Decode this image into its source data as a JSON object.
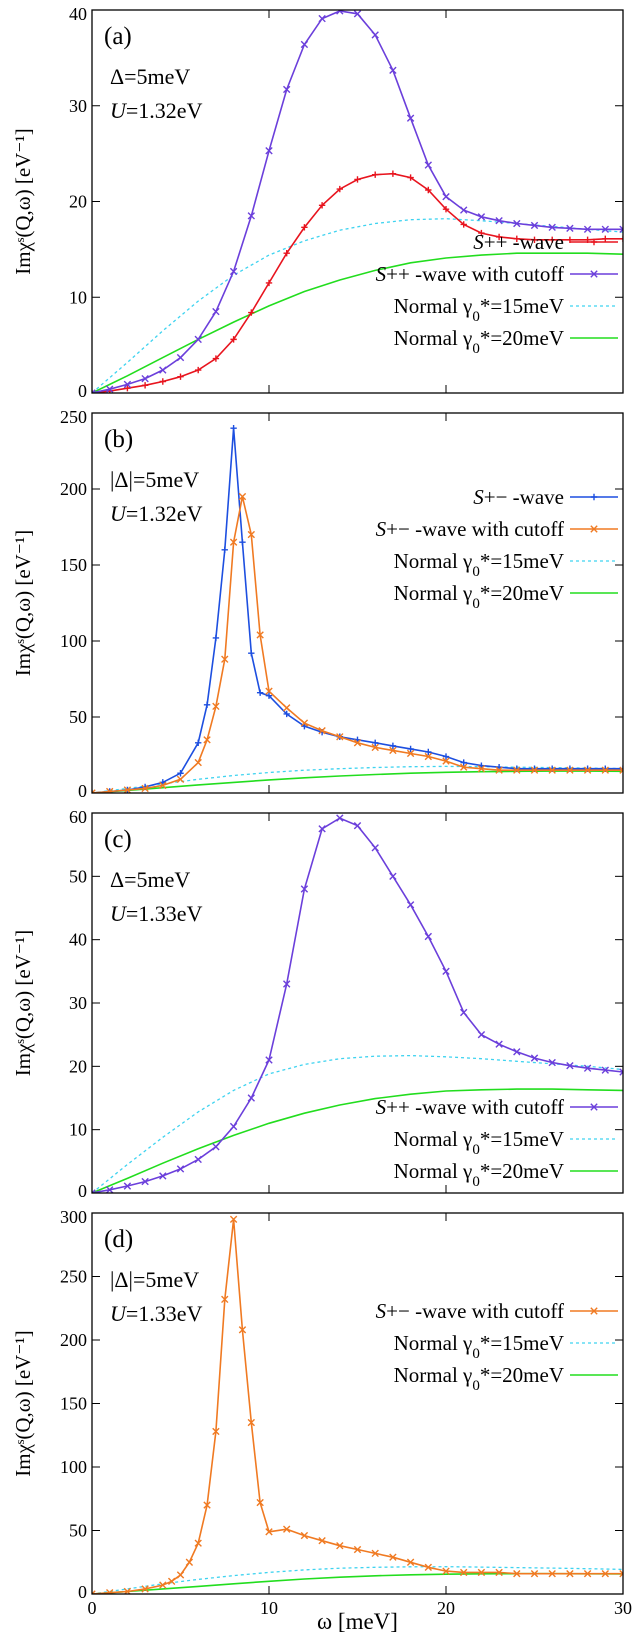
{
  "figure": {
    "x_axis_label": "ω [meV]",
    "y_axis_label": "Imχˢ(Q,ω) [eV⁻¹]"
  },
  "chart_data": [
    {
      "type": "line",
      "panel": "(a)",
      "params": [
        "Δ=5meV",
        "U=1.32eV"
      ],
      "xlim": [
        0,
        30
      ],
      "ylim": [
        0,
        40
      ],
      "xticks": [],
      "yticks": [
        0,
        10,
        20,
        30,
        40
      ],
      "legend_position": "bottom-right",
      "grid": false,
      "series": [
        {
          "name": "S++ -wave",
          "color": "#e8141e",
          "marker": "plus",
          "dash": "solid",
          "x": [
            0,
            1,
            2,
            3,
            4,
            5,
            6,
            7,
            8,
            9,
            10,
            11,
            12,
            13,
            14,
            15,
            16,
            17,
            18,
            19,
            20,
            21,
            22,
            23,
            24,
            25,
            26,
            27,
            28,
            29,
            30
          ],
          "y": [
            0,
            0.2,
            0.5,
            0.8,
            1.2,
            1.7,
            2.4,
            3.6,
            5.6,
            8.4,
            11.5,
            14.6,
            17.3,
            19.6,
            21.3,
            22.3,
            22.8,
            22.9,
            22.5,
            21.2,
            19.2,
            17.6,
            16.7,
            16.3,
            16.1,
            16.0,
            16.0,
            16.0,
            16.0,
            16.1,
            16.1
          ]
        },
        {
          "name": "S++ -wave with cutoff",
          "color": "#6b3fdb",
          "marker": "cross",
          "dash": "solid",
          "x": [
            0,
            1,
            2,
            3,
            4,
            5,
            6,
            7,
            8,
            9,
            10,
            11,
            12,
            13,
            14,
            15,
            16,
            17,
            18,
            19,
            20,
            21,
            22,
            23,
            24,
            25,
            26,
            27,
            28,
            29,
            30
          ],
          "y": [
            0,
            0.4,
            0.9,
            1.5,
            2.4,
            3.7,
            5.6,
            8.5,
            12.7,
            18.5,
            25.3,
            31.7,
            36.4,
            39.1,
            39.9,
            39.6,
            37.4,
            33.7,
            28.7,
            23.8,
            20.5,
            19.1,
            18.4,
            18.0,
            17.7,
            17.5,
            17.3,
            17.2,
            17.1,
            17.1,
            17.1
          ]
        },
        {
          "name": "Normal γ₀*=15meV",
          "color": "#3ed3f0",
          "marker": "none",
          "dash": "dashed",
          "x": [
            0,
            2,
            4,
            6,
            8,
            10,
            12,
            14,
            16,
            18,
            20,
            22,
            24,
            26,
            28,
            30
          ],
          "y": [
            0,
            3.2,
            6.5,
            9.6,
            12.3,
            14.4,
            15.9,
            17.0,
            17.7,
            18.1,
            18.2,
            18.0,
            17.7,
            17.4,
            17.1,
            16.8
          ]
        },
        {
          "name": "Normal γ₀*=20meV",
          "color": "#22dd1e",
          "marker": "none",
          "dash": "solid",
          "x": [
            0,
            2,
            4,
            6,
            8,
            10,
            12,
            14,
            16,
            18,
            20,
            22,
            24,
            26,
            28,
            30
          ],
          "y": [
            0,
            1.8,
            3.7,
            5.6,
            7.4,
            9.1,
            10.6,
            11.8,
            12.8,
            13.6,
            14.1,
            14.4,
            14.6,
            14.6,
            14.6,
            14.5
          ]
        }
      ]
    },
    {
      "type": "line",
      "panel": "(b)",
      "params": [
        "|Δ|=5meV",
        "U=1.32eV"
      ],
      "xlim": [
        0,
        30
      ],
      "ylim": [
        0,
        250
      ],
      "xticks": [],
      "yticks": [
        0,
        50,
        100,
        150,
        200,
        250
      ],
      "legend_position": "top-right",
      "grid": false,
      "series": [
        {
          "name": "S+− -wave",
          "color": "#1d4fe0",
          "marker": "plus",
          "dash": "solid",
          "x": [
            0,
            1,
            2,
            3,
            4,
            5,
            6,
            6.5,
            7,
            7.5,
            8,
            8.5,
            9,
            9.5,
            10,
            11,
            12,
            13,
            14,
            15,
            16,
            17,
            18,
            19,
            20,
            21,
            22,
            23,
            24,
            25,
            26,
            27,
            28,
            29,
            30
          ],
          "y": [
            0,
            1,
            2,
            4,
            7,
            13,
            33,
            58,
            102,
            160,
            240,
            165,
            92,
            66,
            64,
            52,
            44,
            40,
            37,
            35,
            33,
            31,
            29,
            27,
            24,
            20,
            18,
            17,
            16,
            16,
            16,
            16,
            16,
            16,
            16
          ]
        },
        {
          "name": "S+− -wave with cutoff",
          "color": "#f07a22",
          "marker": "cross",
          "dash": "solid",
          "x": [
            0,
            1,
            2,
            3,
            4,
            5,
            6,
            6.5,
            7,
            7.5,
            8,
            8.5,
            9,
            9.5,
            10,
            11,
            12,
            13,
            14,
            15,
            16,
            17,
            18,
            19,
            20,
            21,
            22,
            23,
            24,
            25,
            26,
            27,
            28,
            29,
            30
          ],
          "y": [
            0,
            1,
            2,
            3,
            5,
            9,
            20,
            35,
            57,
            88,
            165,
            195,
            170,
            104,
            67,
            56,
            46,
            41,
            37,
            33,
            30,
            28,
            26,
            24,
            21,
            17,
            16,
            15,
            15,
            15,
            15,
            15,
            15,
            15,
            15
          ]
        },
        {
          "name": "Normal γ₀*=15meV",
          "color": "#3ed3f0",
          "marker": "none",
          "dash": "dashed",
          "x": [
            0,
            2,
            4,
            6,
            8,
            10,
            12,
            14,
            16,
            18,
            20,
            22,
            24,
            26,
            28,
            30
          ],
          "y": [
            0,
            3,
            6,
            9,
            11.5,
            13.5,
            15,
            16,
            16.8,
            17.3,
            17.5,
            17.3,
            17,
            16.7,
            16.4,
            16.1
          ]
        },
        {
          "name": "Normal γ₀*=20meV",
          "color": "#22dd1e",
          "marker": "none",
          "dash": "solid",
          "x": [
            0,
            2,
            4,
            6,
            8,
            10,
            12,
            14,
            16,
            18,
            20,
            22,
            24,
            26,
            28,
            30
          ],
          "y": [
            0,
            1.7,
            3.5,
            5.3,
            7,
            8.6,
            10,
            11.2,
            12.2,
            13,
            13.6,
            14,
            14.3,
            14.4,
            14.4,
            14.3
          ]
        }
      ]
    },
    {
      "type": "line",
      "panel": "(c)",
      "params": [
        "Δ=5meV",
        "U=1.33eV"
      ],
      "xlim": [
        0,
        30
      ],
      "ylim": [
        0,
        60
      ],
      "xticks": [],
      "yticks": [
        0,
        10,
        20,
        30,
        40,
        50,
        60
      ],
      "legend_position": "bottom-right",
      "grid": false,
      "series": [
        {
          "name": "S++ -wave with cutoff",
          "color": "#6b3fdb",
          "marker": "cross",
          "dash": "solid",
          "x": [
            0,
            1,
            2,
            3,
            4,
            5,
            6,
            7,
            8,
            9,
            10,
            11,
            12,
            13,
            14,
            15,
            16,
            17,
            18,
            19,
            20,
            21,
            22,
            23,
            24,
            25,
            26,
            27,
            28,
            29,
            30
          ],
          "y": [
            0,
            0.5,
            1.1,
            1.8,
            2.7,
            3.8,
            5.3,
            7.3,
            10.5,
            15,
            21,
            33,
            48,
            57.5,
            59.2,
            58,
            54.5,
            50,
            45.5,
            40.5,
            35,
            28.5,
            25,
            23.5,
            22.3,
            21.3,
            20.6,
            20.1,
            19.7,
            19.4,
            19.1
          ]
        },
        {
          "name": "Normal γ₀*=15meV",
          "color": "#3ed3f0",
          "marker": "none",
          "dash": "dashed",
          "x": [
            0,
            2,
            4,
            6,
            8,
            10,
            12,
            14,
            16,
            18,
            20,
            22,
            24,
            26,
            28,
            30
          ],
          "y": [
            0,
            4.5,
            8.8,
            12.8,
            16.2,
            18.8,
            20.3,
            21.2,
            21.6,
            21.7,
            21.5,
            21.2,
            20.8,
            20.4,
            20,
            19.5
          ]
        },
        {
          "name": "Normal γ₀*=20meV",
          "color": "#22dd1e",
          "marker": "none",
          "dash": "solid",
          "x": [
            0,
            2,
            4,
            6,
            8,
            10,
            12,
            14,
            16,
            18,
            20,
            22,
            24,
            26,
            28,
            30
          ],
          "y": [
            0,
            2.3,
            4.7,
            7,
            9.1,
            11,
            12.6,
            13.9,
            14.9,
            15.6,
            16.1,
            16.3,
            16.4,
            16.4,
            16.3,
            16.2
          ]
        }
      ]
    },
    {
      "type": "line",
      "panel": "(d)",
      "params": [
        "|Δ|=5meV",
        "U=1.33eV"
      ],
      "xlim": [
        0,
        30
      ],
      "ylim": [
        0,
        300
      ],
      "xticks": [
        0,
        10,
        20,
        30
      ],
      "yticks": [
        0,
        50,
        100,
        150,
        200,
        250,
        300
      ],
      "legend_position": "top-right",
      "grid": false,
      "series": [
        {
          "name": "S+− -wave with cutoff",
          "color": "#f07a22",
          "marker": "cross",
          "dash": "solid",
          "x": [
            0,
            1,
            2,
            3,
            4,
            4.5,
            5,
            5.5,
            6,
            6.5,
            7,
            7.5,
            8,
            8.5,
            9,
            9.5,
            10,
            11,
            12,
            13,
            14,
            15,
            16,
            17,
            18,
            19,
            20,
            21,
            22,
            23,
            24,
            25,
            26,
            27,
            28,
            29,
            30
          ],
          "y": [
            0,
            1,
            2,
            4,
            7,
            10,
            15,
            25,
            40,
            70,
            128,
            232,
            295,
            208,
            135,
            72,
            49,
            51,
            46,
            42,
            38,
            35,
            32,
            29,
            25,
            21,
            18,
            17,
            17,
            17,
            16,
            16,
            16,
            16,
            16,
            16,
            16
          ]
        },
        {
          "name": "Normal γ₀*=15meV",
          "color": "#3ed3f0",
          "marker": "none",
          "dash": "dashed",
          "x": [
            0,
            2,
            4,
            6,
            8,
            10,
            12,
            14,
            16,
            18,
            20,
            22,
            24,
            26,
            28,
            30
          ],
          "y": [
            0,
            4,
            8,
            11.5,
            14.5,
            17,
            19,
            20.3,
            21,
            21.4,
            21.5,
            21.2,
            20.8,
            20.4,
            19.9,
            19.4
          ]
        },
        {
          "name": "Normal γ₀*=20meV",
          "color": "#22dd1e",
          "marker": "none",
          "dash": "solid",
          "x": [
            0,
            2,
            4,
            6,
            8,
            10,
            12,
            14,
            16,
            18,
            20,
            22,
            24,
            26,
            28,
            30
          ],
          "y": [
            0,
            2,
            4,
            6,
            8,
            10,
            11.8,
            13.2,
            14.3,
            15.1,
            15.6,
            15.9,
            16,
            16,
            15.9,
            15.8
          ]
        }
      ]
    }
  ]
}
